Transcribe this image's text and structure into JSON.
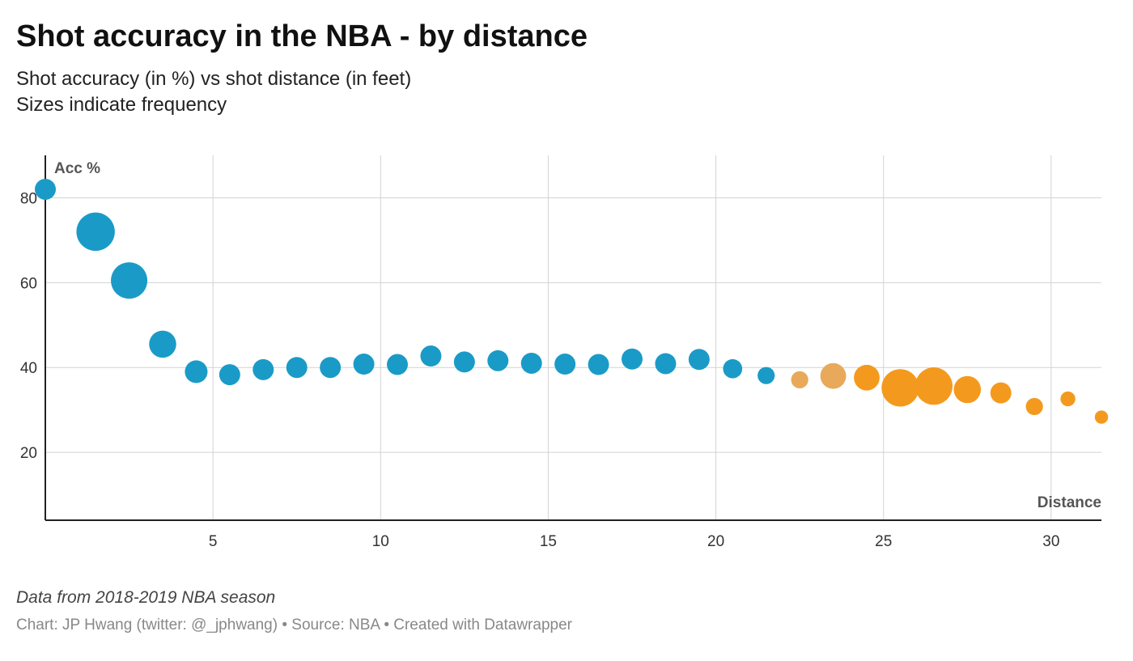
{
  "title": "Shot accuracy in the NBA - by distance",
  "subtitle_line1": "Shot accuracy (in %) vs shot distance (in feet)",
  "subtitle_line2": "Sizes indicate frequency",
  "footer": {
    "note": "Data from 2018-2019 NBA season",
    "credits": "Chart: JP Hwang (twitter: @_jphwang) • Source: NBA • Created with Datawrapper"
  },
  "colors": {
    "blue": "#1a9bc7",
    "orange": "#f39a1e",
    "orange_light": "#e8a95a",
    "grid": "#d3d3d3",
    "axis": "#222222"
  },
  "chart_data": {
    "type": "scatter",
    "xlabel": "Distance",
    "ylabel": "Acc %",
    "xlim": [
      0,
      31.5
    ],
    "ylim": [
      4,
      90
    ],
    "x_ticks": [
      "5",
      "10",
      "15",
      "20",
      "25",
      "30"
    ],
    "y_ticks": [
      "20",
      "40",
      "60",
      "80"
    ],
    "grid": true,
    "size_encodes": "frequency",
    "points": [
      {
        "x": 0,
        "y": 82,
        "size": 3,
        "color": "blue"
      },
      {
        "x": 1,
        "y": 72,
        "size": 10,
        "color": "blue"
      },
      {
        "x": 2,
        "y": 60.5,
        "size": 9,
        "color": "blue"
      },
      {
        "x": 3,
        "y": 45.5,
        "size": 5,
        "color": "blue"
      },
      {
        "x": 4,
        "y": 39,
        "size": 3.5,
        "color": "blue"
      },
      {
        "x": 5,
        "y": 38.3,
        "size": 3,
        "color": "blue"
      },
      {
        "x": 6,
        "y": 39.5,
        "size": 3,
        "color": "blue"
      },
      {
        "x": 7,
        "y": 40,
        "size": 3,
        "color": "blue"
      },
      {
        "x": 8,
        "y": 40,
        "size": 3,
        "color": "blue"
      },
      {
        "x": 9,
        "y": 40.8,
        "size": 3,
        "color": "blue"
      },
      {
        "x": 10,
        "y": 40.7,
        "size": 3,
        "color": "blue"
      },
      {
        "x": 11,
        "y": 42.7,
        "size": 3,
        "color": "blue"
      },
      {
        "x": 12,
        "y": 41.3,
        "size": 3,
        "color": "blue"
      },
      {
        "x": 13,
        "y": 41.6,
        "size": 3,
        "color": "blue"
      },
      {
        "x": 14,
        "y": 41,
        "size": 3,
        "color": "blue"
      },
      {
        "x": 15,
        "y": 40.8,
        "size": 3,
        "color": "blue"
      },
      {
        "x": 16,
        "y": 40.7,
        "size": 3,
        "color": "blue"
      },
      {
        "x": 17,
        "y": 42,
        "size": 3,
        "color": "blue"
      },
      {
        "x": 18,
        "y": 40.9,
        "size": 3,
        "color": "blue"
      },
      {
        "x": 19,
        "y": 41.9,
        "size": 3,
        "color": "blue"
      },
      {
        "x": 20,
        "y": 39.7,
        "size": 2.5,
        "color": "blue"
      },
      {
        "x": 21,
        "y": 38.1,
        "size": 2,
        "color": "blue"
      },
      {
        "x": 22,
        "y": 37.1,
        "size": 2,
        "color": "orange_light"
      },
      {
        "x": 23,
        "y": 38,
        "size": 4.5,
        "color": "orange_light"
      },
      {
        "x": 24,
        "y": 37.6,
        "size": 4.5,
        "color": "orange"
      },
      {
        "x": 25,
        "y": 35.2,
        "size": 9.5,
        "color": "orange"
      },
      {
        "x": 26,
        "y": 35.6,
        "size": 9.5,
        "color": "orange"
      },
      {
        "x": 27,
        "y": 34.8,
        "size": 5,
        "color": "orange"
      },
      {
        "x": 28,
        "y": 34,
        "size": 3,
        "color": "orange"
      },
      {
        "x": 29,
        "y": 30.8,
        "size": 2,
        "color": "orange"
      },
      {
        "x": 30,
        "y": 32.6,
        "size": 1.5,
        "color": "orange"
      },
      {
        "x": 31,
        "y": 28.3,
        "size": 1.2,
        "color": "orange"
      }
    ]
  }
}
